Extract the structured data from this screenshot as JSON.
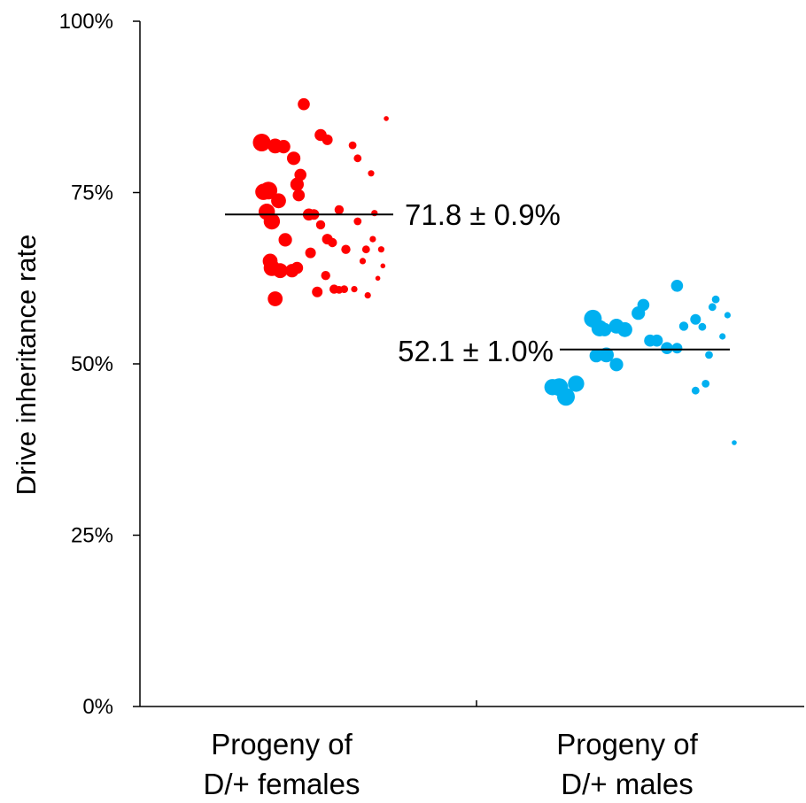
{
  "chart_data": {
    "type": "scatter",
    "title": "",
    "xlabel": "",
    "ylabel": "Drive inheritance rate",
    "ylim": [
      0,
      100
    ],
    "y_ticks": [
      "0%",
      "25%",
      "50%",
      "75%",
      "100%"
    ],
    "categories": [
      {
        "line1": "Progeny of",
        "line2": "D/+ females"
      },
      {
        "line1": "Progeny of",
        "line2": "D/+ males"
      }
    ],
    "grid": false,
    "legend": "none",
    "series": [
      {
        "category": 0,
        "color": "#ff0000",
        "mean_value": 71.8,
        "mean_label": "71.8 ± 0.9%",
        "points": [
          {
            "jitter": 0.25,
            "y": 82.3,
            "w": 10
          },
          {
            "jitter": 0.33,
            "y": 81.8,
            "w": 8
          },
          {
            "jitter": 0.38,
            "y": 81.7,
            "w": 7
          },
          {
            "jitter": 0.5,
            "y": 87.9,
            "w": 6
          },
          {
            "jitter": 0.6,
            "y": 83.4,
            "w": 6
          },
          {
            "jitter": 0.64,
            "y": 82.7,
            "w": 5
          },
          {
            "jitter": 0.79,
            "y": 81.9,
            "w": 3
          },
          {
            "jitter": 0.82,
            "y": 80.0,
            "w": 3
          },
          {
            "jitter": 0.9,
            "y": 77.8,
            "w": 2
          },
          {
            "jitter": 0.99,
            "y": 85.8,
            "w": 1
          },
          {
            "jitter": 0.26,
            "y": 75.1,
            "w": 9
          },
          {
            "jitter": 0.29,
            "y": 75.3,
            "w": 10
          },
          {
            "jitter": 0.28,
            "y": 72.2,
            "w": 9
          },
          {
            "jitter": 0.35,
            "y": 73.8,
            "w": 8
          },
          {
            "jitter": 0.31,
            "y": 70.8,
            "w": 9
          },
          {
            "jitter": 0.44,
            "y": 80.0,
            "w": 7
          },
          {
            "jitter": 0.48,
            "y": 77.6,
            "w": 6
          },
          {
            "jitter": 0.46,
            "y": 76.2,
            "w": 7
          },
          {
            "jitter": 0.47,
            "y": 74.6,
            "w": 6
          },
          {
            "jitter": 0.53,
            "y": 71.8,
            "w": 6
          },
          {
            "jitter": 0.56,
            "y": 71.8,
            "w": 5
          },
          {
            "jitter": 0.71,
            "y": 72.5,
            "w": 4
          },
          {
            "jitter": 0.6,
            "y": 70.3,
            "w": 4
          },
          {
            "jitter": 0.82,
            "y": 70.8,
            "w": 3
          },
          {
            "jitter": 0.92,
            "y": 72.0,
            "w": 2
          },
          {
            "jitter": 0.39,
            "y": 68.1,
            "w": 7
          },
          {
            "jitter": 0.64,
            "y": 68.2,
            "w": 5
          },
          {
            "jitter": 0.67,
            "y": 67.7,
            "w": 4
          },
          {
            "jitter": 0.75,
            "y": 66.7,
            "w": 4
          },
          {
            "jitter": 0.87,
            "y": 66.7,
            "w": 3
          },
          {
            "jitter": 0.91,
            "y": 68.2,
            "w": 2
          },
          {
            "jitter": 0.96,
            "y": 66.7,
            "w": 2
          },
          {
            "jitter": 0.54,
            "y": 66.2,
            "w": 5
          },
          {
            "jitter": 0.3,
            "y": 65.0,
            "w": 8
          },
          {
            "jitter": 0.85,
            "y": 65.0,
            "w": 2
          },
          {
            "jitter": 0.31,
            "y": 64.0,
            "w": 9
          },
          {
            "jitter": 0.36,
            "y": 63.6,
            "w": 8
          },
          {
            "jitter": 0.43,
            "y": 63.6,
            "w": 7
          },
          {
            "jitter": 0.46,
            "y": 64.0,
            "w": 6
          },
          {
            "jitter": 0.97,
            "y": 64.3,
            "w": 1
          },
          {
            "jitter": 0.63,
            "y": 62.9,
            "w": 4
          },
          {
            "jitter": 0.94,
            "y": 62.5,
            "w": 1
          },
          {
            "jitter": 0.68,
            "y": 60.9,
            "w": 4
          },
          {
            "jitter": 0.58,
            "y": 60.5,
            "w": 5
          },
          {
            "jitter": 0.71,
            "y": 60.8,
            "w": 3
          },
          {
            "jitter": 0.74,
            "y": 60.9,
            "w": 3
          },
          {
            "jitter": 0.8,
            "y": 60.9,
            "w": 2
          },
          {
            "jitter": 0.33,
            "y": 59.5,
            "w": 8
          },
          {
            "jitter": 0.88,
            "y": 60.0,
            "w": 2
          }
        ]
      },
      {
        "category": 1,
        "color": "#00b0f0",
        "mean_value": 52.1,
        "mean_label": "52.1 ± 1.0%",
        "points": [
          {
            "jitter": 0.26,
            "y": 56.6,
            "w": 10
          },
          {
            "jitter": 0.3,
            "y": 55.2,
            "w": 9
          },
          {
            "jitter": 0.33,
            "y": 55.0,
            "w": 7
          },
          {
            "jitter": 0.4,
            "y": 55.5,
            "w": 8
          },
          {
            "jitter": 0.45,
            "y": 55.0,
            "w": 8
          },
          {
            "jitter": 0.28,
            "y": 51.2,
            "w": 7
          },
          {
            "jitter": 0.34,
            "y": 51.3,
            "w": 8
          },
          {
            "jitter": 0.4,
            "y": 49.9,
            "w": 7
          },
          {
            "jitter": 0.53,
            "y": 57.4,
            "w": 7
          },
          {
            "jitter": 0.56,
            "y": 58.6,
            "w": 6
          },
          {
            "jitter": 0.6,
            "y": 53.4,
            "w": 6
          },
          {
            "jitter": 0.64,
            "y": 53.4,
            "w": 6
          },
          {
            "jitter": 0.7,
            "y": 52.3,
            "w": 6
          },
          {
            "jitter": 0.76,
            "y": 52.3,
            "w": 5
          },
          {
            "jitter": 0.76,
            "y": 61.4,
            "w": 6
          },
          {
            "jitter": 0.8,
            "y": 55.5,
            "w": 4
          },
          {
            "jitter": 0.87,
            "y": 56.5,
            "w": 5
          },
          {
            "jitter": 0.91,
            "y": 55.4,
            "w": 3
          },
          {
            "jitter": 0.95,
            "y": 51.3,
            "w": 3
          },
          {
            "jitter": 0.97,
            "y": 58.3,
            "w": 3
          },
          {
            "jitter": 0.99,
            "y": 59.4,
            "w": 3
          },
          {
            "jitter": 1.03,
            "y": 54.0,
            "w": 2
          },
          {
            "jitter": 1.06,
            "y": 57.1,
            "w": 2
          },
          {
            "jitter": 0.02,
            "y": 46.6,
            "w": 9
          },
          {
            "jitter": 0.06,
            "y": 46.6,
            "w": 10
          },
          {
            "jitter": 0.1,
            "y": 45.2,
            "w": 10
          },
          {
            "jitter": 0.16,
            "y": 47.1,
            "w": 9
          },
          {
            "jitter": 0.87,
            "y": 46.1,
            "w": 3
          },
          {
            "jitter": 0.93,
            "y": 47.1,
            "w": 3
          },
          {
            "jitter": 1.1,
            "y": 38.5,
            "w": 1
          }
        ]
      }
    ]
  }
}
